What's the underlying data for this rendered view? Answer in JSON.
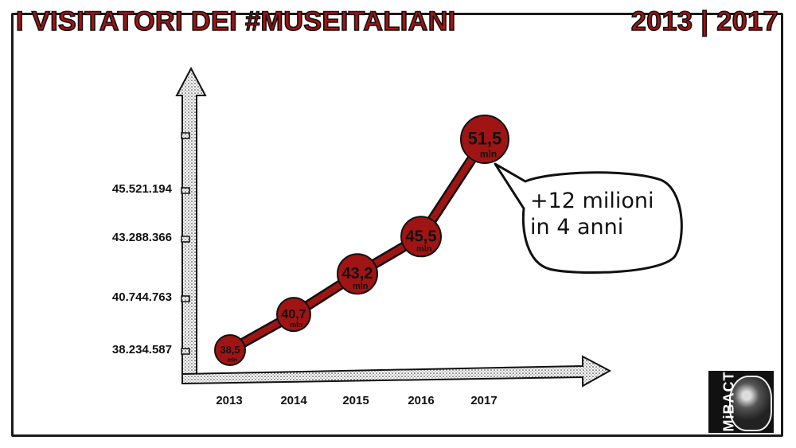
{
  "title_left": "I VISITATORI DEI #MUSEITALIANI",
  "title_right": "2013 | 2017",
  "callout": {
    "line1": "+12 milioni",
    "line2": "in 4 anni"
  },
  "logo": {
    "text": "MiBACT"
  },
  "colors": {
    "marker": "#a01414",
    "title_fill": "#a01414",
    "ink": "#111111"
  },
  "chart_data": {
    "type": "line",
    "categories": [
      "2013",
      "2014",
      "2015",
      "2016",
      "2017"
    ],
    "values": [
      38.5,
      40.7,
      43.2,
      45.5,
      51.5
    ],
    "value_labels": [
      "38,5",
      "40,7",
      "43,2",
      "45,5",
      "51,5"
    ],
    "unit_label": "mln",
    "y_tick_labels": [
      "38.234.587",
      "40.744.763",
      "43.288.366",
      "45.521.194"
    ],
    "title": "I VISITATORI DEI #MUSEITALIANI",
    "xlabel": "",
    "ylabel": "",
    "legend": "none",
    "grid": false
  }
}
